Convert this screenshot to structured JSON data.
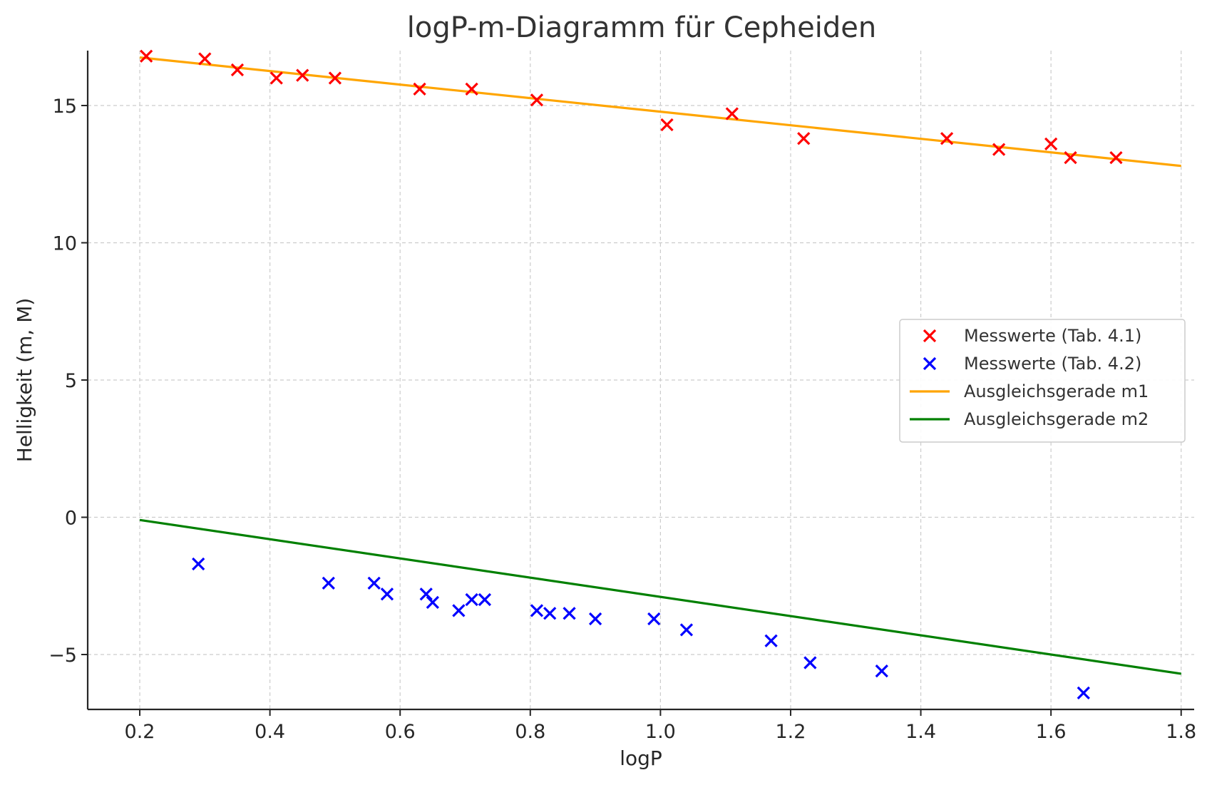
{
  "chart_data": {
    "type": "scatter",
    "title": "logP-m-Diagramm für Cepheiden",
    "xlabel": "logP",
    "ylabel": "Helligkeit (m, M)",
    "xlim": [
      0.12,
      1.82
    ],
    "ylim": [
      -7.0,
      17.0
    ],
    "x_ticks": [
      0.2,
      0.4,
      0.6,
      0.8,
      1.0,
      1.2,
      1.4,
      1.6,
      1.8
    ],
    "x_tick_labels": [
      "0.2",
      "0.4",
      "0.6",
      "0.8",
      "1.0",
      "1.2",
      "1.4",
      "1.6",
      "1.8"
    ],
    "y_ticks": [
      -5,
      0,
      5,
      10,
      15
    ],
    "y_tick_labels": [
      "−5",
      "0",
      "5",
      "10",
      "15"
    ],
    "grid": true,
    "legend_position": "center-right",
    "series": [
      {
        "name": "Messwerte (Tab. 4.1)",
        "kind": "scatter",
        "marker": "x",
        "color": "#ff0000",
        "x": [
          0.21,
          0.3,
          0.35,
          0.41,
          0.45,
          0.5,
          0.63,
          0.71,
          0.81,
          1.01,
          1.11,
          1.22,
          1.44,
          1.52,
          1.6,
          1.63,
          1.7
        ],
        "y": [
          16.8,
          16.7,
          16.3,
          16.0,
          16.1,
          16.0,
          15.6,
          15.6,
          15.2,
          14.3,
          14.7,
          13.8,
          13.8,
          13.4,
          13.6,
          13.1,
          13.1
        ]
      },
      {
        "name": "Messwerte (Tab. 4.2)",
        "kind": "scatter",
        "marker": "x",
        "color": "#0000ff",
        "x": [
          0.29,
          0.49,
          0.56,
          0.58,
          0.64,
          0.65,
          0.69,
          0.71,
          0.73,
          0.81,
          0.83,
          0.86,
          0.9,
          0.99,
          1.04,
          1.17,
          1.23,
          1.34,
          1.65
        ],
        "y": [
          -1.7,
          -2.4,
          -2.4,
          -2.8,
          -2.8,
          -3.1,
          -3.4,
          -3.0,
          -3.0,
          -3.4,
          -3.5,
          -3.5,
          -3.7,
          -3.7,
          -4.1,
          -4.5,
          -5.3,
          -5.6,
          -6.4
        ]
      },
      {
        "name": "Ausgleichsgerade m1",
        "kind": "line",
        "color": "#ffa500",
        "x": [
          0.2,
          1.8
        ],
        "y": [
          16.75,
          12.8
        ]
      },
      {
        "name": "Ausgleichsgerade m2",
        "kind": "line",
        "color": "#008000",
        "x": [
          0.2,
          1.8
        ],
        "y": [
          -0.1,
          -5.7
        ]
      }
    ]
  }
}
